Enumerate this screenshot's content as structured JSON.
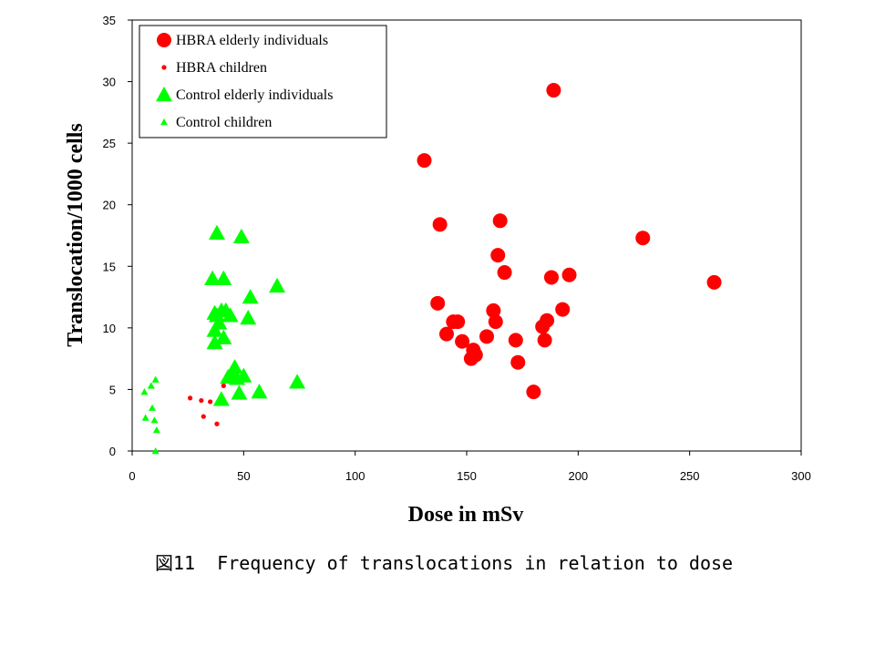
{
  "chart_data": {
    "type": "scatter",
    "title": "",
    "xlabel": "Dose in mSv",
    "ylabel": "Translocation/1000 cells",
    "xlim": [
      0,
      300
    ],
    "ylim": [
      0,
      35
    ],
    "xticks": [
      "0",
      "50",
      "100",
      "150",
      "200",
      "250",
      "300"
    ],
    "yticks": [
      "0",
      "5",
      "10",
      "15",
      "20",
      "25",
      "30",
      "35"
    ],
    "grid": false,
    "legend_position": "top-left",
    "series": [
      {
        "name": "HBRA elderly individuals",
        "marker": "circle-large",
        "color": "#ff0000",
        "x": [
          131,
          137,
          138,
          141,
          144,
          146,
          148,
          152,
          153,
          154,
          159,
          162,
          163,
          164,
          165,
          167,
          172,
          173,
          180,
          184,
          185,
          186,
          188,
          189,
          193,
          196,
          229,
          261
        ],
        "y": [
          23.6,
          12.0,
          18.4,
          9.5,
          10.5,
          10.5,
          8.9,
          7.5,
          8.2,
          7.8,
          9.3,
          11.4,
          10.5,
          15.9,
          18.7,
          14.5,
          9.0,
          7.2,
          4.8,
          10.1,
          9.0,
          10.6,
          14.1,
          29.3,
          11.5,
          14.3,
          17.3,
          13.7
        ]
      },
      {
        "name": "HBRA children",
        "marker": "circle-small",
        "color": "#ff0000",
        "x": [
          26,
          31,
          32,
          35,
          38,
          41
        ],
        "y": [
          4.3,
          4.1,
          2.8,
          4.0,
          2.2,
          5.3
        ]
      },
      {
        "name": "Control elderly individuals",
        "marker": "triangle-large",
        "color": "#00ff00",
        "x": [
          36,
          37,
          37,
          37,
          38,
          38,
          39,
          40,
          40,
          41,
          41,
          42,
          43,
          44,
          45,
          46,
          47,
          48,
          49,
          50,
          52,
          53,
          57,
          65,
          74
        ],
        "y": [
          14.0,
          9.8,
          8.8,
          11.2,
          17.7,
          11.0,
          10.4,
          11.4,
          4.2,
          9.2,
          14.0,
          11.4,
          6.0,
          11.0,
          6.2,
          6.8,
          5.9,
          4.7,
          17.4,
          6.1,
          10.8,
          12.5,
          4.8,
          13.4,
          5.6
        ]
      },
      {
        "name": "Control children",
        "marker": "triangle-small",
        "color": "#00ff00",
        "x": [
          5.5,
          6,
          8.5,
          9,
          10,
          10.5,
          11,
          10.5
        ],
        "y": [
          4.8,
          2.7,
          5.3,
          3.5,
          2.5,
          5.8,
          1.7,
          0.0
        ]
      }
    ]
  },
  "caption": "図11  Frequency of translocations in relation to dose"
}
